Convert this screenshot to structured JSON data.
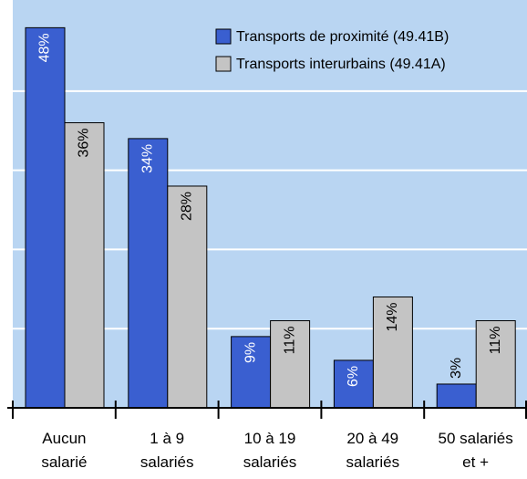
{
  "chart_data": {
    "type": "bar",
    "categories": [
      "Aucun\nsalarié",
      "1 à 9\nsalariés",
      "10 à 19\nsalariés",
      "20 à 49\nsalariés",
      "50 salariés\net +"
    ],
    "series": [
      {
        "name": "Transports de proximité (49.41B)",
        "color": "#3a5fd0",
        "values": [
          48,
          34,
          9,
          6,
          3
        ],
        "value_labels": [
          "48%",
          "34%",
          "9%",
          "6%",
          "3%"
        ]
      },
      {
        "name": "Transports interurbains (49.41A)",
        "color": "#c4c4c4",
        "values": [
          36,
          28,
          11,
          14,
          11
        ],
        "value_labels": [
          "36%",
          "28%",
          "11%",
          "14%",
          "11%"
        ]
      }
    ],
    "ylim": [
      0,
      51.5
    ],
    "yticks": [
      10,
      20,
      30,
      40
    ],
    "grid": true,
    "legend": "upper right",
    "background": "#b9d5f2"
  }
}
